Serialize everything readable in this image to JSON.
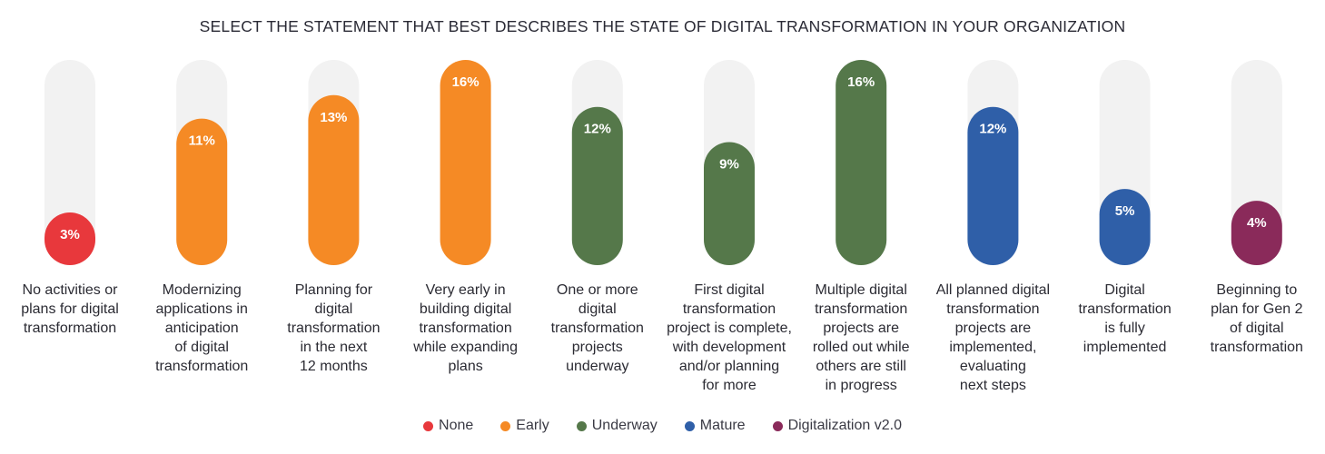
{
  "title": "SELECT THE STATEMENT THAT BEST DESCRIBES THE STATE OF DIGITAL TRANSFORMATION IN YOUR ORGANIZATION",
  "colors": {
    "track": "#f2f2f2",
    "None": "#e8383c",
    "Early": "#f58a25",
    "Underway": "#55784a",
    "Mature": "#2f5fa8",
    "Digitalization v2.0": "#8a2a5a",
    "value_label": "#ffffff",
    "category_label": "#2b2b33"
  },
  "legend": [
    {
      "label": "None",
      "color": "#e8383c"
    },
    {
      "label": "Early",
      "color": "#f58a25"
    },
    {
      "label": "Underway",
      "color": "#55784a"
    },
    {
      "label": "Mature",
      "color": "#2f5fa8"
    },
    {
      "label": "Digitalization v2.0",
      "color": "#8a2a5a"
    }
  ],
  "chart_data": {
    "type": "bar",
    "title": "SELECT THE STATEMENT THAT BEST DESCRIBES THE STATE OF DIGITAL TRANSFORMATION IN YOUR ORGANIZATION",
    "xlabel": "",
    "ylabel": "",
    "ylim": [
      0,
      16
    ],
    "unit": "%",
    "grid": false,
    "legend_position": "bottom",
    "categories": [
      [
        "No activities or",
        "plans for digital",
        "transformation"
      ],
      [
        "Modernizing",
        "applications in",
        "anticipation",
        "of digital",
        "transformation"
      ],
      [
        "Planning for",
        "digital",
        "transformation",
        "in the next",
        "12 months"
      ],
      [
        "Very early in",
        "building digital",
        "transformation",
        "while expanding",
        "plans"
      ],
      [
        "One or more",
        "digital",
        "transformation",
        "projects",
        "underway"
      ],
      [
        "First digital",
        "transformation",
        "project is complete,",
        "with development",
        "and/or planning",
        "for more"
      ],
      [
        "Multiple digital",
        "transformation",
        "projects are",
        "rolled out while",
        "others are still",
        "in progress"
      ],
      [
        "All planned digital",
        "transformation",
        "projects are",
        "implemented,",
        "evaluating",
        "next steps"
      ],
      [
        "Digital",
        "transformation",
        "is fully",
        "implemented"
      ],
      [
        "Beginning to",
        "plan for Gen 2",
        "of digital",
        "transformation"
      ]
    ],
    "values": [
      3,
      11,
      13,
      16,
      12,
      9,
      16,
      12,
      5,
      4
    ],
    "value_labels": [
      "3%",
      "11%",
      "13%",
      "16%",
      "12%",
      "9%",
      "16%",
      "12%",
      "5%",
      "4%"
    ],
    "groups": [
      "None",
      "Early",
      "Early",
      "Early",
      "Underway",
      "Underway",
      "Underway",
      "Mature",
      "Mature",
      "Digitalization v2.0"
    ]
  }
}
